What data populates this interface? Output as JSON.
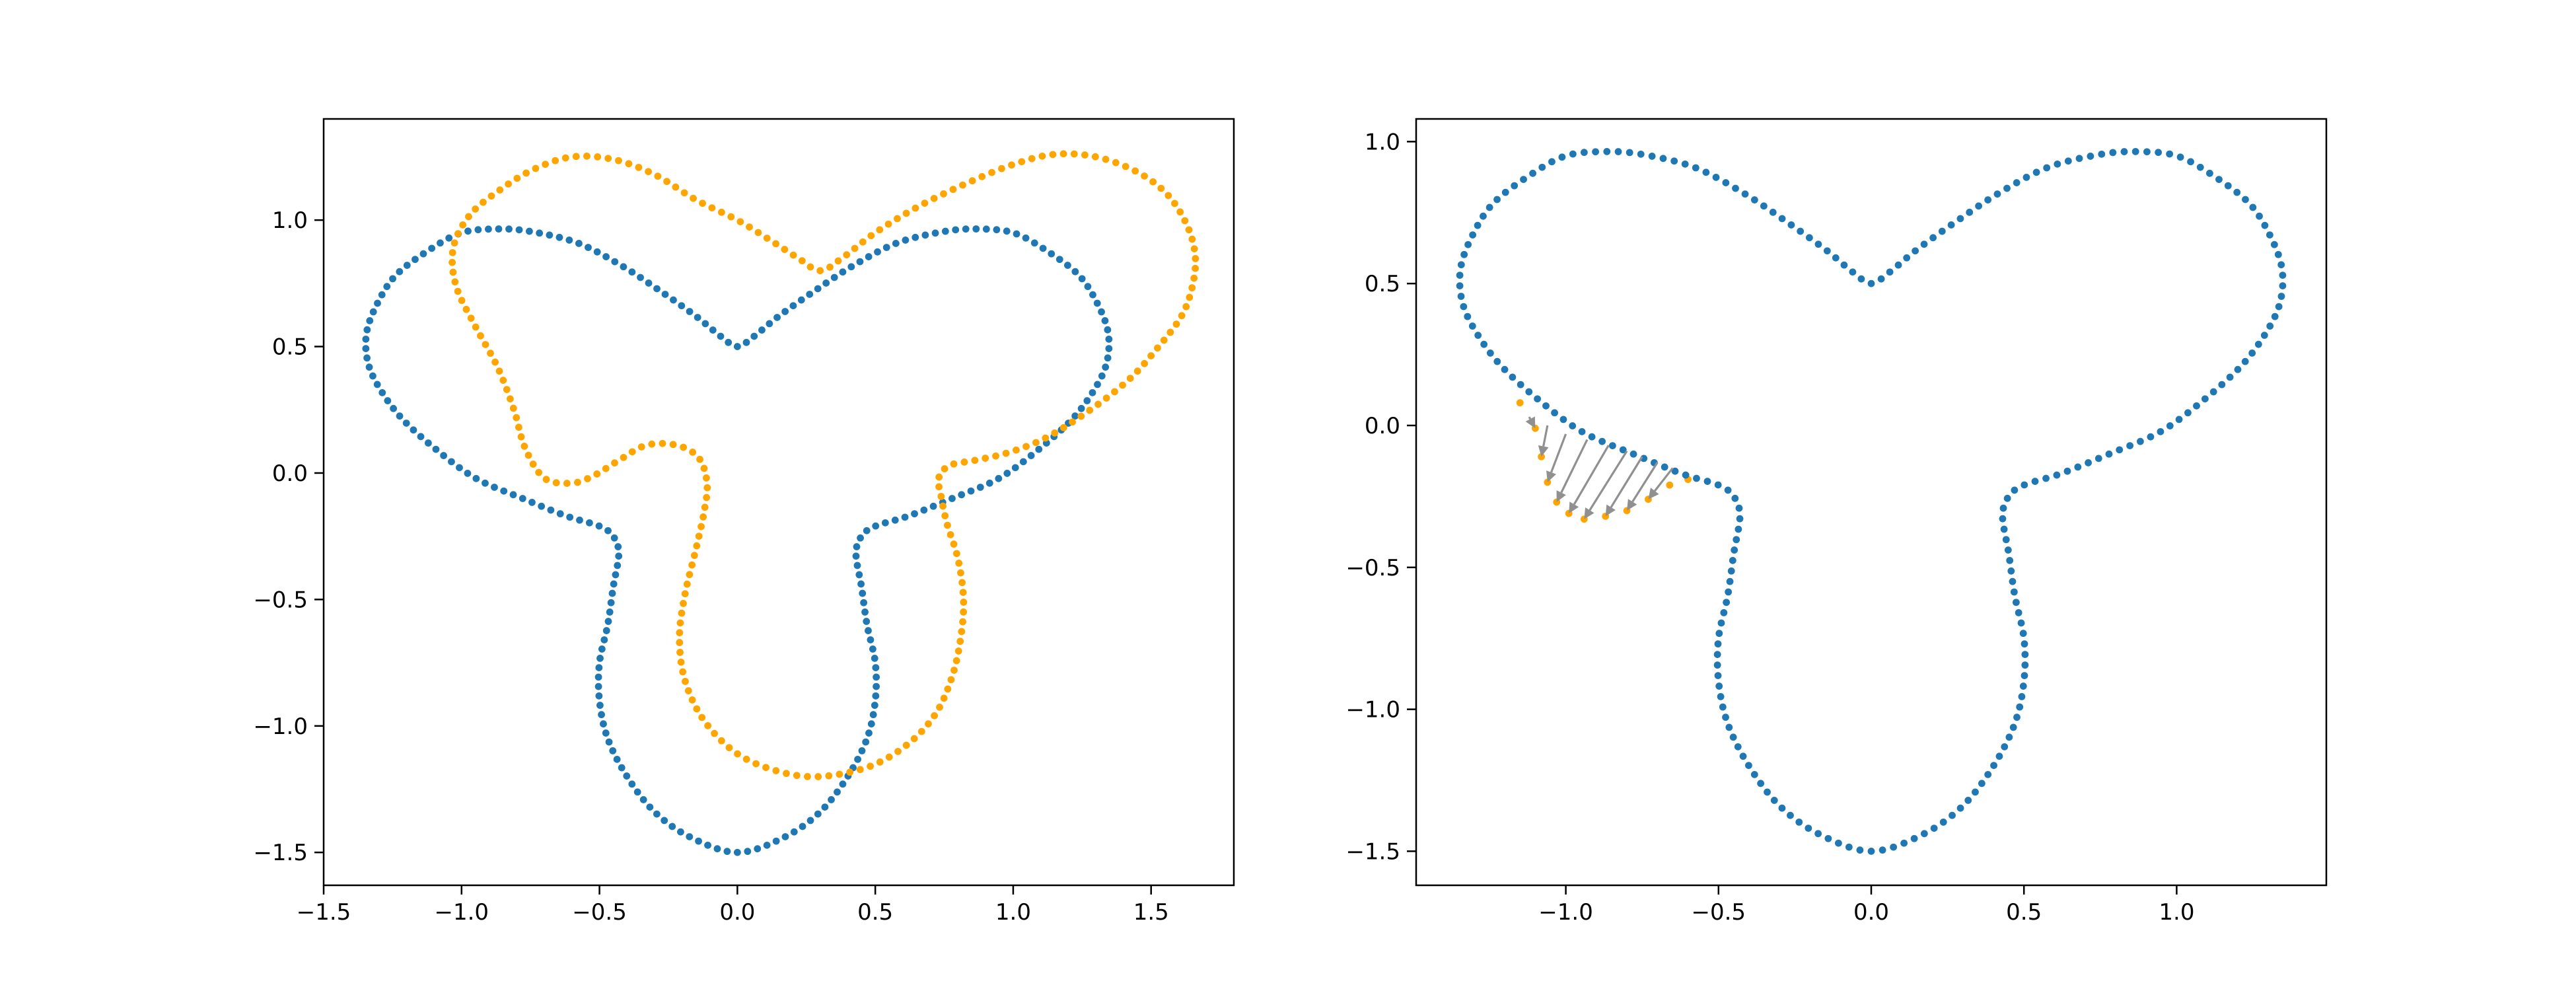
{
  "figure": {
    "background": "#ffffff"
  },
  "colors": {
    "reference": "#1f77b4",
    "deformed": "#ffa500",
    "arrows": "#909090"
  },
  "chart_data": [
    {
      "type": "scatter",
      "title": "",
      "xlabel": "",
      "ylabel": "",
      "xlim": [
        -1.5,
        1.8
      ],
      "ylim": [
        -1.63,
        1.4
      ],
      "xticks": [
        -1.5,
        -1.0,
        -0.5,
        0.0,
        0.5,
        1.0,
        1.5
      ],
      "xtick_labels": [
        "−1.5",
        "−1.0",
        "−0.5",
        "0.0",
        "0.5",
        "1.0",
        "1.5"
      ],
      "yticks": [
        -1.5,
        -1.0,
        -0.5,
        0.0,
        0.5,
        1.0
      ],
      "ytick_labels": [
        "−1.5",
        "−1.0",
        "−0.5",
        "0.0",
        "0.5",
        "1.0"
      ],
      "grid": false,
      "legend": "none",
      "curve_description": "Closed trefoil-shaped curves sampled as 240 evenly spaced points each; values below are control points in data units",
      "series": [
        {
          "color": "#1f77b4",
          "points": [
            [
              0.0,
              0.5
            ],
            [
              0.06,
              0.54
            ],
            [
              0.15,
              0.62
            ],
            [
              0.28,
              0.72
            ],
            [
              0.42,
              0.82
            ],
            [
              0.58,
              0.91
            ],
            [
              0.75,
              0.955
            ],
            [
              0.87,
              0.965
            ],
            [
              1.0,
              0.95
            ],
            [
              1.12,
              0.88
            ],
            [
              1.24,
              0.78
            ],
            [
              1.31,
              0.66
            ],
            [
              1.345,
              0.55
            ],
            [
              1.34,
              0.44
            ],
            [
              1.3,
              0.34
            ],
            [
              1.22,
              0.22
            ],
            [
              1.1,
              0.1
            ],
            [
              0.95,
              -0.02
            ],
            [
              0.78,
              -0.1
            ],
            [
              0.62,
              -0.17
            ],
            [
              0.5,
              -0.21
            ],
            [
              0.45,
              -0.25
            ],
            [
              0.43,
              -0.32
            ],
            [
              0.45,
              -0.45
            ],
            [
              0.47,
              -0.6
            ],
            [
              0.5,
              -0.75
            ],
            [
              0.5,
              -0.9
            ],
            [
              0.47,
              -1.05
            ],
            [
              0.4,
              -1.2
            ],
            [
              0.3,
              -1.34
            ],
            [
              0.17,
              -1.44
            ],
            [
              0.0,
              -1.5
            ],
            [
              -0.17,
              -1.44
            ],
            [
              -0.3,
              -1.34
            ],
            [
              -0.4,
              -1.2
            ],
            [
              -0.47,
              -1.05
            ],
            [
              -0.5,
              -0.9
            ],
            [
              -0.5,
              -0.75
            ],
            [
              -0.47,
              -0.6
            ],
            [
              -0.45,
              -0.45
            ],
            [
              -0.43,
              -0.32
            ],
            [
              -0.45,
              -0.25
            ],
            [
              -0.5,
              -0.21
            ],
            [
              -0.62,
              -0.17
            ],
            [
              -0.78,
              -0.1
            ],
            [
              -0.95,
              -0.02
            ],
            [
              -1.1,
              0.1
            ],
            [
              -1.22,
              0.22
            ],
            [
              -1.3,
              0.34
            ],
            [
              -1.34,
              0.44
            ],
            [
              -1.345,
              0.55
            ],
            [
              -1.31,
              0.66
            ],
            [
              -1.24,
              0.78
            ],
            [
              -1.12,
              0.88
            ],
            [
              -1.0,
              0.95
            ],
            [
              -0.87,
              0.965
            ],
            [
              -0.75,
              0.955
            ],
            [
              -0.58,
              0.91
            ],
            [
              -0.42,
              0.82
            ],
            [
              -0.28,
              0.72
            ],
            [
              -0.15,
              0.62
            ],
            [
              -0.06,
              0.54
            ]
          ]
        },
        {
          "color": "#ffa500",
          "points": [
            [
              0.3,
              0.8
            ],
            [
              0.38,
              0.85
            ],
            [
              0.5,
              0.95
            ],
            [
              0.65,
              1.05
            ],
            [
              0.82,
              1.14
            ],
            [
              1.0,
              1.22
            ],
            [
              1.15,
              1.26
            ],
            [
              1.3,
              1.25
            ],
            [
              1.45,
              1.19
            ],
            [
              1.56,
              1.1
            ],
            [
              1.63,
              0.98
            ],
            [
              1.66,
              0.86
            ],
            [
              1.65,
              0.74
            ],
            [
              1.61,
              0.62
            ],
            [
              1.52,
              0.49
            ],
            [
              1.42,
              0.37
            ],
            [
              1.28,
              0.25
            ],
            [
              1.12,
              0.14
            ],
            [
              0.98,
              0.08
            ],
            [
              0.86,
              0.05
            ],
            [
              0.77,
              0.03
            ],
            [
              0.73,
              -0.02
            ],
            [
              0.74,
              -0.1
            ],
            [
              0.76,
              -0.2
            ],
            [
              0.8,
              -0.34
            ],
            [
              0.82,
              -0.5
            ],
            [
              0.81,
              -0.65
            ],
            [
              0.78,
              -0.8
            ],
            [
              0.72,
              -0.95
            ],
            [
              0.62,
              -1.07
            ],
            [
              0.48,
              -1.16
            ],
            [
              0.3,
              -1.2
            ],
            [
              0.15,
              -1.18
            ],
            [
              0.0,
              -1.11
            ],
            [
              -0.12,
              -0.98
            ],
            [
              -0.19,
              -0.82
            ],
            [
              -0.21,
              -0.65
            ],
            [
              -0.19,
              -0.48
            ],
            [
              -0.15,
              -0.3
            ],
            [
              -0.12,
              -0.15
            ],
            [
              -0.11,
              -0.04
            ],
            [
              -0.14,
              0.06
            ],
            [
              -0.22,
              0.11
            ],
            [
              -0.33,
              0.11
            ],
            [
              -0.43,
              0.05
            ],
            [
              -0.52,
              -0.01
            ],
            [
              -0.6,
              -0.04
            ],
            [
              -0.7,
              -0.02
            ],
            [
              -0.77,
              0.1
            ],
            [
              -0.81,
              0.25
            ],
            [
              -0.87,
              0.42
            ],
            [
              -0.95,
              0.58
            ],
            [
              -1.02,
              0.74
            ],
            [
              -1.03,
              0.89
            ],
            [
              -0.97,
              1.02
            ],
            [
              -0.86,
              1.12
            ],
            [
              -0.74,
              1.2
            ],
            [
              -0.6,
              1.25
            ],
            [
              -0.45,
              1.24
            ],
            [
              -0.3,
              1.18
            ],
            [
              -0.15,
              1.08
            ],
            [
              0.0,
              1.0
            ],
            [
              0.12,
              0.92
            ],
            [
              0.22,
              0.85
            ]
          ]
        }
      ]
    },
    {
      "type": "scatter",
      "title": "",
      "xlabel": "",
      "ylabel": "",
      "xlim": [
        -1.49,
        1.49
      ],
      "ylim": [
        -1.62,
        1.08
      ],
      "xticks": [
        -1.0,
        -0.5,
        0.0,
        0.5,
        1.0
      ],
      "xtick_labels": [
        "−1.0",
        "−0.5",
        "0.0",
        "0.5",
        "1.0"
      ],
      "yticks": [
        -1.5,
        -1.0,
        -0.5,
        0.0,
        0.5,
        1.0
      ],
      "ytick_labels": [
        "−1.5",
        "−1.0",
        "−0.5",
        "0.0",
        "0.5",
        "1.0"
      ],
      "grid": false,
      "legend": "none",
      "series": [
        {
          "color": "#1f77b4",
          "points_ref": "same trefoil curve as the blue series in the left panel"
        },
        {
          "color": "#ffa500",
          "points": [
            [
              -1.15,
              0.08
            ],
            [
              -1.1,
              -0.01
            ],
            [
              -1.08,
              -0.11
            ],
            [
              -1.06,
              -0.2
            ],
            [
              -1.03,
              -0.27
            ],
            [
              -0.99,
              -0.31
            ],
            [
              -0.94,
              -0.33
            ],
            [
              -0.87,
              -0.32
            ],
            [
              -0.8,
              -0.3
            ],
            [
              -0.73,
              -0.26
            ],
            [
              -0.66,
              -0.21
            ],
            [
              -0.6,
              -0.19
            ]
          ]
        }
      ],
      "arrows": {
        "color": "#909090",
        "segments": [
          {
            "from": [
              -1.12,
              0.03
            ],
            "to": [
              -1.1,
              -0.01
            ]
          },
          {
            "from": [
              -1.06,
              0.0
            ],
            "to": [
              -1.08,
              -0.11
            ]
          },
          {
            "from": [
              -1.0,
              -0.03
            ],
            "to": [
              -1.06,
              -0.2
            ]
          },
          {
            "from": [
              -0.93,
              -0.05
            ],
            "to": [
              -1.03,
              -0.27
            ]
          },
          {
            "from": [
              -0.86,
              -0.07
            ],
            "to": [
              -0.99,
              -0.31
            ]
          },
          {
            "from": [
              -0.8,
              -0.09
            ],
            "to": [
              -0.94,
              -0.33
            ]
          },
          {
            "from": [
              -0.75,
              -0.11
            ],
            "to": [
              -0.87,
              -0.32
            ]
          },
          {
            "from": [
              -0.7,
              -0.13
            ],
            "to": [
              -0.8,
              -0.3
            ]
          },
          {
            "from": [
              -0.65,
              -0.15
            ],
            "to": [
              -0.73,
              -0.26
            ]
          }
        ]
      }
    }
  ]
}
